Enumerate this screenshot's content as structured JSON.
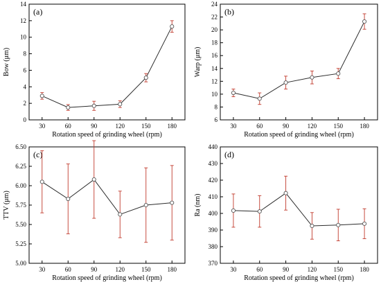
{
  "chart_data": [
    {
      "type": "line",
      "panel": "(a)",
      "xlabel": "Rotation speed of grinding wheel (rpm)",
      "ylabel": "Bow (μm)",
      "x": [
        30,
        60,
        90,
        120,
        150,
        180
      ],
      "x_ticks": [
        "30",
        "60",
        "90",
        "120",
        "150",
        "180"
      ],
      "xlim": [
        15,
        195
      ],
      "ylim": [
        0,
        14
      ],
      "y_ticks": [
        "0",
        "2",
        "4",
        "6",
        "8",
        "10",
        "12",
        "14"
      ],
      "y_tick_values": [
        0,
        2,
        4,
        6,
        8,
        10,
        12,
        14
      ],
      "values": [
        2.9,
        1.5,
        1.7,
        1.9,
        5.1,
        11.3
      ],
      "errors": [
        0.4,
        0.35,
        0.55,
        0.4,
        0.5,
        0.7
      ]
    },
    {
      "type": "line",
      "panel": "(b)",
      "xlabel": "Rotation speed of grinding wheel (rpm)",
      "ylabel": "Warp (μm)",
      "x": [
        30,
        60,
        90,
        120,
        150,
        180
      ],
      "x_ticks": [
        "30",
        "60",
        "90",
        "120",
        "150",
        "180"
      ],
      "xlim": [
        15,
        195
      ],
      "ylim": [
        6,
        24
      ],
      "y_ticks": [
        "6",
        "8",
        "10",
        "12",
        "14",
        "16",
        "18",
        "20",
        "22",
        "24"
      ],
      "y_tick_values": [
        6,
        8,
        10,
        12,
        14,
        16,
        18,
        20,
        22,
        24
      ],
      "values": [
        10.2,
        9.3,
        11.8,
        12.6,
        13.2,
        21.3
      ],
      "errors": [
        0.6,
        0.9,
        1.0,
        1.0,
        0.8,
        1.2
      ]
    },
    {
      "type": "line",
      "panel": "(c)",
      "xlabel": "Rotation speed of grinding wheel (rpm)",
      "ylabel": "TTV (μm)",
      "x": [
        30,
        60,
        90,
        120,
        150,
        180
      ],
      "x_ticks": [
        "30",
        "60",
        "90",
        "120",
        "150",
        "180"
      ],
      "xlim": [
        15,
        195
      ],
      "ylim": [
        5.0,
        6.5
      ],
      "y_ticks": [
        "5.00",
        "5.25",
        "5.50",
        "5.75",
        "6.00",
        "6.25",
        "6.50"
      ],
      "y_tick_values": [
        5.0,
        5.25,
        5.5,
        5.75,
        6.0,
        6.25,
        6.5
      ],
      "values": [
        6.05,
        5.83,
        6.08,
        5.63,
        5.75,
        5.78
      ],
      "errors": [
        0.4,
        0.45,
        0.5,
        0.3,
        0.48,
        0.48
      ]
    },
    {
      "type": "line",
      "panel": "(d)",
      "xlabel": "Rotation speed of grinding wheel (rpm)",
      "ylabel": "Ra (nm)",
      "x": [
        30,
        60,
        90,
        120,
        150,
        180
      ],
      "x_ticks": [
        "30",
        "60",
        "90",
        "120",
        "150",
        "180"
      ],
      "xlim": [
        15,
        195
      ],
      "ylim": [
        370,
        440
      ],
      "y_ticks": [
        "370",
        "380",
        "390",
        "400",
        "410",
        "420",
        "430",
        "440"
      ],
      "y_tick_values": [
        370,
        380,
        390,
        400,
        410,
        420,
        430,
        440
      ],
      "values": [
        401.7,
        401.2,
        412.2,
        392.5,
        393.0,
        393.8
      ],
      "errors": [
        10,
        9.5,
        10.2,
        8,
        9.5,
        9
      ]
    }
  ]
}
